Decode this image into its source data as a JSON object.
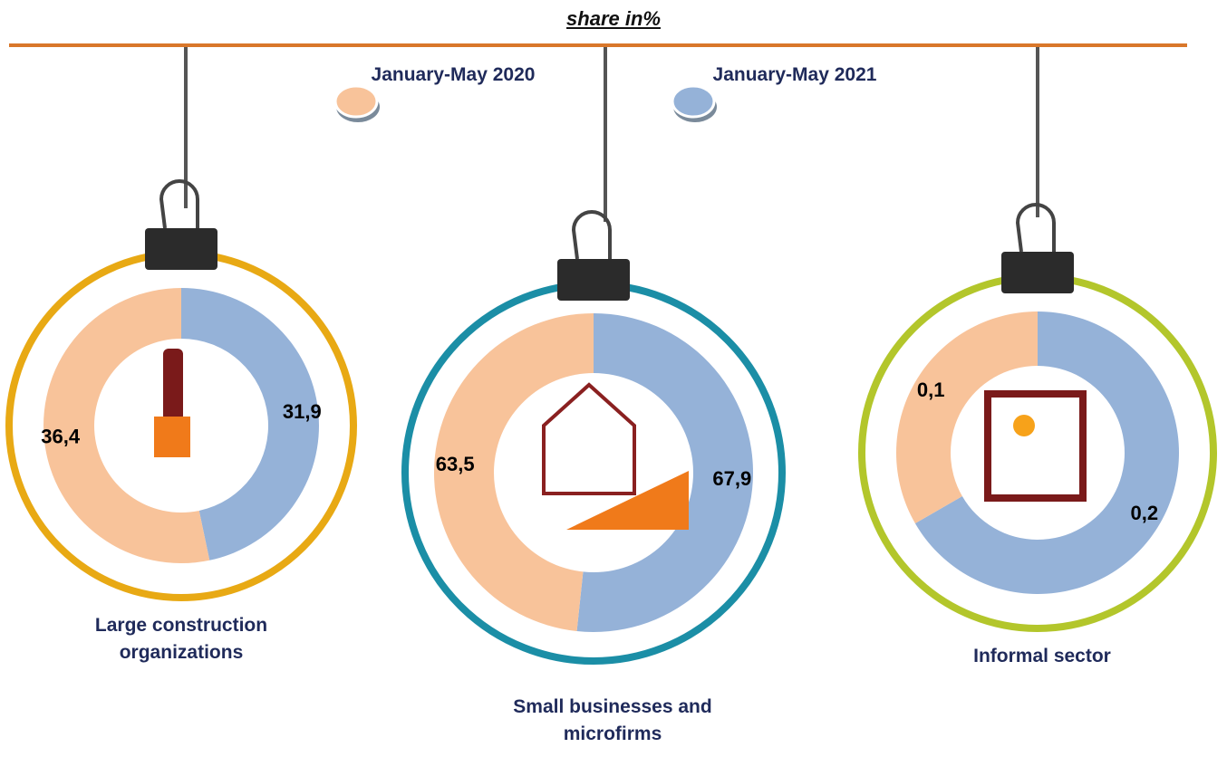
{
  "chart_data": {
    "type": "donut",
    "title": "share in%",
    "categories": [
      "Large construction organizations",
      "Small businesses and microfirms",
      "Informal sector"
    ],
    "ring_colors": [
      "#e8a914",
      "#1b8ea6",
      "#b3c62b"
    ],
    "series": [
      {
        "name": "January-May 2020",
        "color": "#f8c39a",
        "values": [
          36.4,
          63.5,
          0.1
        ],
        "value_labels": [
          "36,4",
          "63,5",
          "0,1"
        ]
      },
      {
        "name": "January-May 2021",
        "color": "#95b2d8",
        "values": [
          31.9,
          67.9,
          0.2
        ],
        "value_labels": [
          "31,9",
          "67,9",
          "0,2"
        ]
      }
    ]
  }
}
